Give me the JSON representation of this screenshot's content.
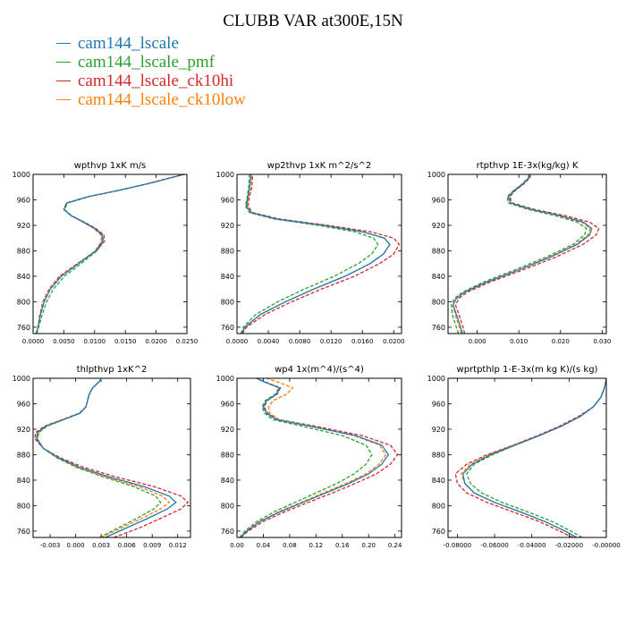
{
  "title": "CLUBB VAR at300E,15N",
  "legend": [
    {
      "name": "cam144_lscale",
      "color": "#1f77b4"
    },
    {
      "name": "cam144_lscale_pmf",
      "color": "#2ca02c"
    },
    {
      "name": "cam144_lscale_ck10hi",
      "color": "#d62728"
    },
    {
      "name": "cam144_lscale_ck10low",
      "color": "#ff7f0e"
    }
  ],
  "chart_data": [
    {
      "type": "line",
      "title": "wpthvp   1xK m/s",
      "xlim": [
        0,
        0.025
      ],
      "ylim": [
        1000,
        750
      ],
      "xticks": [
        0,
        0.005,
        0.01,
        0.015,
        0.02,
        0.025
      ],
      "xticklabels": [
        "0.0000",
        "0.0050",
        "0.0100",
        "0.0150",
        "0.0200",
        "0.0250"
      ],
      "yticks": [
        760,
        800,
        840,
        880,
        920,
        960,
        1000
      ],
      "y": [
        750,
        760,
        780,
        800,
        820,
        840,
        860,
        880,
        895,
        905,
        915,
        925,
        935,
        945,
        955,
        965,
        975,
        985,
        995,
        1000
      ],
      "series": [
        {
          "name": "cam144_lscale",
          "dash": "solid",
          "x": [
            0.0005,
            0.0008,
            0.0012,
            0.0018,
            0.0028,
            0.0046,
            0.0074,
            0.0102,
            0.0113,
            0.0112,
            0.01,
            0.0082,
            0.0062,
            0.005,
            0.0055,
            0.009,
            0.014,
            0.0185,
            0.0225,
            0.0245
          ]
        },
        {
          "name": "cam144_lscale_pmf",
          "dash": "dashed",
          "x": [
            0.0006,
            0.0009,
            0.0015,
            0.0022,
            0.0033,
            0.0051,
            0.0078,
            0.0104,
            0.0114,
            0.0113,
            0.0101,
            0.0083,
            0.0063,
            0.0051,
            0.0056,
            0.0091,
            0.014,
            0.0185,
            0.0225,
            0.0245
          ]
        },
        {
          "name": "cam144_lscale_ck10hi",
          "dash": "dashed",
          "x": [
            0.0005,
            0.0008,
            0.0011,
            0.0016,
            0.0026,
            0.0043,
            0.0072,
            0.0103,
            0.0116,
            0.0115,
            0.0102,
            0.0083,
            0.0062,
            0.005,
            0.0054,
            0.0089,
            0.0139,
            0.0184,
            0.0224,
            0.0245
          ]
        },
        {
          "name": "cam144_lscale_ck10low",
          "dash": "dashed",
          "x": [
            0.0005,
            0.0008,
            0.0012,
            0.0017,
            0.0027,
            0.0045,
            0.0073,
            0.0101,
            0.0111,
            0.011,
            0.0099,
            0.0081,
            0.0062,
            0.005,
            0.0055,
            0.009,
            0.014,
            0.0185,
            0.0225,
            0.0245
          ]
        }
      ]
    },
    {
      "type": "line",
      "title": "wp2thvp   1xK m^2/s^2",
      "xlim": [
        0,
        0.021
      ],
      "ylim": [
        1000,
        750
      ],
      "xticks": [
        0,
        0.004,
        0.008,
        0.012,
        0.016,
        0.02
      ],
      "xticklabels": [
        "0.0000",
        "0.0040",
        "0.0080",
        "0.0120",
        "0.0160",
        "0.0200"
      ],
      "yticks": [
        760,
        800,
        840,
        880,
        920,
        960,
        1000
      ],
      "y": [
        750,
        760,
        780,
        800,
        820,
        840,
        860,
        875,
        890,
        900,
        910,
        920,
        930,
        940,
        950,
        965,
        980,
        1000
      ],
      "series": [
        {
          "name": "cam144_lscale",
          "dash": "solid",
          "x": [
            0.0006,
            0.001,
            0.003,
            0.0062,
            0.0098,
            0.0138,
            0.017,
            0.0187,
            0.0195,
            0.0188,
            0.016,
            0.011,
            0.005,
            0.0018,
            0.0012,
            0.0014,
            0.0016,
            0.0018
          ]
        },
        {
          "name": "cam144_lscale_pmf",
          "dash": "dashed",
          "x": [
            0.0005,
            0.0008,
            0.0024,
            0.0052,
            0.0086,
            0.0124,
            0.0155,
            0.0172,
            0.018,
            0.0174,
            0.015,
            0.0104,
            0.0047,
            0.0016,
            0.0011,
            0.0013,
            0.0015,
            0.0016
          ]
        },
        {
          "name": "cam144_lscale_ck10hi",
          "dash": "dashed",
          "x": [
            0.0007,
            0.0012,
            0.0036,
            0.007,
            0.0108,
            0.015,
            0.0182,
            0.02,
            0.0207,
            0.02,
            0.017,
            0.0116,
            0.0054,
            0.002,
            0.0014,
            0.0016,
            0.0019,
            0.002
          ]
        },
        {
          "name": "cam144_lscale_ck10low",
          "dash": "dashed",
          "x": [
            0.0006,
            0.001,
            0.003,
            0.0062,
            0.0098,
            0.0138,
            0.017,
            0.0187,
            0.0195,
            0.0188,
            0.016,
            0.011,
            0.005,
            0.0018,
            0.0013,
            0.0015,
            0.0018,
            0.0019
          ]
        }
      ]
    },
    {
      "type": "line",
      "title": "rtpthvp   1E-3x(kg/kg) K",
      "xlim": [
        -0.007,
        0.031
      ],
      "ylim": [
        1000,
        750
      ],
      "xticks": [
        0,
        0.01,
        0.02,
        0.03
      ],
      "xticklabels": [
        "0.000",
        "0.010",
        "0.020",
        "0.030"
      ],
      "yticks": [
        760,
        800,
        840,
        880,
        920,
        960,
        1000
      ],
      "y": [
        750,
        760,
        780,
        795,
        805,
        815,
        830,
        850,
        870,
        890,
        905,
        915,
        925,
        935,
        945,
        955,
        965,
        975,
        985,
        995,
        1000
      ],
      "series": [
        {
          "name": "cam144_lscale",
          "dash": "solid",
          "x": [
            -0.0035,
            -0.004,
            -0.005,
            -0.0058,
            -0.005,
            -0.003,
            0.002,
            0.01,
            0.0175,
            0.024,
            0.027,
            0.0275,
            0.0255,
            0.02,
            0.013,
            0.008,
            0.0075,
            0.009,
            0.011,
            0.0125,
            0.0125
          ]
        },
        {
          "name": "cam144_lscale_pmf",
          "dash": "dashed",
          "x": [
            -0.0045,
            -0.005,
            -0.006,
            -0.0062,
            -0.0055,
            -0.0035,
            0.0012,
            0.009,
            0.0165,
            0.023,
            0.0258,
            0.0262,
            0.024,
            0.0188,
            0.0122,
            0.0075,
            0.0072,
            0.0088,
            0.0108,
            0.0123,
            0.0124
          ]
        },
        {
          "name": "cam144_lscale_ck10hi",
          "dash": "dashed",
          "x": [
            -0.003,
            -0.0034,
            -0.0044,
            -0.0052,
            -0.0044,
            -0.0024,
            0.0028,
            0.011,
            0.0188,
            0.0254,
            0.0286,
            0.0292,
            0.027,
            0.0212,
            0.0138,
            0.0084,
            0.0078,
            0.0092,
            0.0112,
            0.0127,
            0.0127
          ]
        },
        {
          "name": "cam144_lscale_ck10low",
          "dash": "dashed",
          "x": [
            -0.0038,
            -0.0043,
            -0.0053,
            -0.0058,
            -0.0051,
            -0.0031,
            0.0018,
            0.0098,
            0.0172,
            0.0237,
            0.0266,
            0.0271,
            0.0251,
            0.0196,
            0.0127,
            0.0078,
            0.0074,
            0.0089,
            0.0109,
            0.0124,
            0.0125
          ]
        }
      ]
    },
    {
      "type": "line",
      "title": "thlpthvp   1xK^2",
      "xlim": [
        -0.005,
        0.0135
      ],
      "ylim": [
        1000,
        750
      ],
      "xticks": [
        -0.003,
        0,
        0.003,
        0.006,
        0.009,
        0.012
      ],
      "xticklabels": [
        "-0.003",
        "0.000",
        "0.003",
        "0.006",
        "0.009",
        "0.012"
      ],
      "yticks": [
        760,
        800,
        840,
        880,
        920,
        960,
        1000
      ],
      "y": [
        750,
        765,
        780,
        795,
        805,
        815,
        830,
        845,
        860,
        875,
        890,
        905,
        915,
        925,
        935,
        945,
        955,
        965,
        975,
        985,
        995,
        1000
      ],
      "series": [
        {
          "name": "cam144_lscale",
          "dash": "solid",
          "x": [
            0.0035,
            0.006,
            0.0085,
            0.0108,
            0.0118,
            0.011,
            0.008,
            0.004,
            0.0005,
            -0.002,
            -0.0038,
            -0.0046,
            -0.0045,
            -0.0035,
            -0.0015,
            0.0005,
            0.0012,
            0.0014,
            0.0016,
            0.002,
            0.0028,
            0.003
          ]
        },
        {
          "name": "cam144_lscale_pmf",
          "dash": "dashed",
          "x": [
            0.0028,
            0.005,
            0.0072,
            0.0092,
            0.01,
            0.0094,
            0.0068,
            0.0033,
            0.0001,
            -0.0022,
            -0.0038,
            -0.0045,
            -0.0043,
            -0.0033,
            -0.0014,
            0.0005,
            0.0012,
            0.0014,
            0.0016,
            0.002,
            0.0028,
            0.003
          ]
        },
        {
          "name": "cam144_lscale_ck10hi",
          "dash": "dashed",
          "x": [
            0.0045,
            0.0075,
            0.01,
            0.0124,
            0.0132,
            0.0124,
            0.0092,
            0.0048,
            0.001,
            -0.0018,
            -0.0038,
            -0.0048,
            -0.0047,
            -0.0036,
            -0.0016,
            0.0004,
            0.0012,
            0.0014,
            0.0016,
            0.002,
            0.0028,
            0.003
          ]
        },
        {
          "name": "cam144_lscale_ck10low",
          "dash": "dashed",
          "x": [
            0.003,
            0.0054,
            0.0078,
            0.01,
            0.011,
            0.0102,
            0.0074,
            0.0036,
            0.0003,
            -0.0021,
            -0.0038,
            -0.0045,
            -0.0044,
            -0.0034,
            -0.0014,
            0.0005,
            0.0012,
            0.0014,
            0.0016,
            0.002,
            0.0028,
            0.0031
          ]
        }
      ]
    },
    {
      "type": "line",
      "title": "wp4   1x(m^4)/(s^4)",
      "xlim": [
        0,
        0.25
      ],
      "ylim": [
        1000,
        750
      ],
      "xticks": [
        0,
        0.04,
        0.08,
        0.12,
        0.16,
        0.2,
        0.24
      ],
      "xticklabels": [
        "0.00",
        "0.04",
        "0.08",
        "0.12",
        "0.16",
        "0.20",
        "0.24"
      ],
      "yticks": [
        760,
        800,
        840,
        880,
        920,
        960,
        1000
      ],
      "y": [
        750,
        760,
        775,
        790,
        805,
        820,
        835,
        850,
        865,
        880,
        895,
        910,
        925,
        935,
        945,
        955,
        965,
        975,
        985,
        995,
        1000
      ],
      "series": [
        {
          "name": "cam144_lscale",
          "dash": "solid",
          "x": [
            0.005,
            0.015,
            0.035,
            0.065,
            0.1,
            0.135,
            0.17,
            0.2,
            0.22,
            0.23,
            0.22,
            0.18,
            0.11,
            0.06,
            0.045,
            0.04,
            0.045,
            0.06,
            0.065,
            0.04,
            0.03
          ]
        },
        {
          "name": "cam144_lscale_pmf",
          "dash": "dashed",
          "x": [
            0.004,
            0.012,
            0.03,
            0.056,
            0.088,
            0.12,
            0.152,
            0.178,
            0.196,
            0.205,
            0.196,
            0.16,
            0.098,
            0.055,
            0.042,
            0.038,
            0.043,
            0.058,
            0.064,
            0.04,
            0.03
          ]
        },
        {
          "name": "cam144_lscale_ck10hi",
          "dash": "dashed",
          "x": [
            0.006,
            0.017,
            0.04,
            0.072,
            0.108,
            0.145,
            0.18,
            0.212,
            0.233,
            0.244,
            0.233,
            0.19,
            0.118,
            0.064,
            0.047,
            0.041,
            0.046,
            0.061,
            0.066,
            0.041,
            0.03
          ]
        },
        {
          "name": "cam144_lscale_ck10low",
          "dash": "dashed",
          "x": [
            0.005,
            0.014,
            0.034,
            0.063,
            0.097,
            0.131,
            0.166,
            0.196,
            0.216,
            0.226,
            0.217,
            0.178,
            0.11,
            0.064,
            0.05,
            0.048,
            0.055,
            0.075,
            0.085,
            0.06,
            0.045
          ]
        }
      ]
    },
    {
      "type": "line",
      "title": "wprtpthlp   1-E-3x(m kg K)/(s kg)",
      "xlim": [
        -0.085,
        0
      ],
      "ylim": [
        1000,
        750
      ],
      "xticks": [
        -0.08,
        -0.06,
        -0.04,
        -0.02,
        0
      ],
      "xticklabels": [
        "-0.08000",
        "-0.06000",
        "-0.04000",
        "-0.02000",
        "-0.00000"
      ],
      "yticks": [
        760,
        800,
        840,
        880,
        920,
        960,
        1000
      ],
      "y": [
        750,
        760,
        775,
        790,
        805,
        820,
        835,
        850,
        865,
        880,
        895,
        910,
        925,
        940,
        955,
        970,
        985,
        995,
        1000
      ],
      "series": [
        {
          "name": "cam144_lscale",
          "dash": "solid",
          "x": [
            -0.016,
            -0.022,
            -0.033,
            -0.046,
            -0.06,
            -0.071,
            -0.076,
            -0.077,
            -0.072,
            -0.062,
            -0.049,
            -0.036,
            -0.024,
            -0.014,
            -0.007,
            -0.003,
            -0.001,
            -0.0003,
            0
          ]
        },
        {
          "name": "cam144_lscale_pmf",
          "dash": "dashed",
          "x": [
            -0.013,
            -0.019,
            -0.029,
            -0.042,
            -0.056,
            -0.067,
            -0.073,
            -0.075,
            -0.071,
            -0.061,
            -0.049,
            -0.036,
            -0.024,
            -0.014,
            -0.007,
            -0.003,
            -0.001,
            -0.0003,
            0
          ]
        },
        {
          "name": "cam144_lscale_ck10hi",
          "dash": "dashed",
          "x": [
            -0.018,
            -0.025,
            -0.036,
            -0.05,
            -0.064,
            -0.075,
            -0.08,
            -0.081,
            -0.075,
            -0.064,
            -0.05,
            -0.037,
            -0.025,
            -0.015,
            -0.007,
            -0.003,
            -0.001,
            -0.0003,
            0
          ]
        },
        {
          "name": "cam144_lscale_ck10low",
          "dash": "dashed",
          "x": [
            -0.016,
            -0.022,
            -0.033,
            -0.046,
            -0.06,
            -0.071,
            -0.076,
            -0.078,
            -0.073,
            -0.063,
            -0.05,
            -0.036,
            -0.024,
            -0.014,
            -0.007,
            -0.003,
            -0.001,
            -0.0003,
            0
          ]
        }
      ]
    }
  ]
}
